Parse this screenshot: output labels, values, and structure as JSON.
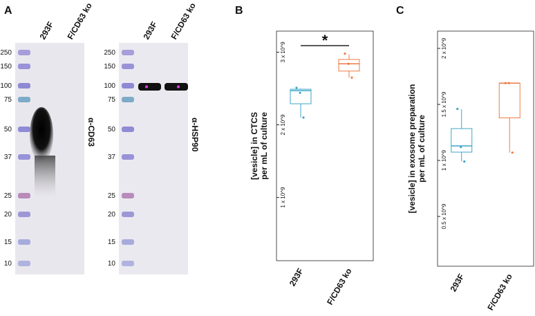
{
  "panel_a": {
    "label": "A",
    "blots": [
      {
        "lanes": [
          "293F",
          "F/CD63 ko"
        ],
        "markers": [
          "250",
          "150",
          "100",
          "75",
          "50",
          "37",
          "25",
          "20",
          "15",
          "10"
        ],
        "antibody": "α-CD63"
      },
      {
        "lanes": [
          "293F",
          "F/CD63 ko"
        ],
        "markers": [
          "250",
          "150",
          "100",
          "75",
          "50",
          "37",
          "25",
          "20",
          "15",
          "10"
        ],
        "antibody": "α-HSP90"
      }
    ]
  },
  "chart_data": [
    {
      "type": "box",
      "panel_label": "B",
      "ylabel": [
        "[vesicle] in CTCS",
        "per mL of culture"
      ],
      "categories": [
        "293F",
        "F/CD63 ko"
      ],
      "series": [
        {
          "name": "293F",
          "color": "#3ea6c7",
          "whisker_low": 2100000000,
          "q1": 2290000000,
          "median": 2470000000,
          "q3": 2490000000,
          "whisker_high": 2500000000,
          "points": [
            2510000000,
            2440000000,
            2100000000
          ]
        },
        {
          "name": "F/CD63 ko",
          "color": "#ee7a45",
          "whisker_low": 2650000000,
          "q1": 2740000000,
          "median": 2840000000,
          "q3": 2900000000,
          "whisker_high": 2970000000,
          "points": [
            2980000000,
            2840000000,
            2650000000
          ]
        }
      ],
      "ylim": [
        130000000,
        3290000000
      ],
      "yticks": [
        {
          "value": 1000000000,
          "label": "1 x 10^9"
        },
        {
          "value": 2000000000,
          "label": "2 x 10^9"
        },
        {
          "value": 3000000000,
          "label": "3 x 10^9"
        }
      ],
      "annotation": "*"
    },
    {
      "type": "box",
      "panel_label": "C",
      "ylabel": [
        "[vesicle] in exosome preparation",
        "per mL of culture"
      ],
      "categories": [
        "293F",
        "F/CD63 ko"
      ],
      "series": [
        {
          "name": "293F",
          "color": "#3ea6c7",
          "whisker_low": 990000000,
          "q1": 1074000000,
          "median": 1130000000,
          "q3": 1284000000,
          "whisker_high": 1457000000,
          "points": [
            1460000000,
            1120000000,
            990000000
          ]
        },
        {
          "name": "F/CD63 ko",
          "color": "#ee7a45",
          "whisker_low": 1070000000,
          "q1": 1380000000,
          "median": 1690000000,
          "q3": 1690000000,
          "whisker_high": 1690000000,
          "points": [
            1690000000,
            1690000000,
            1070000000
          ]
        }
      ],
      "ylim": [
        56000000,
        2154000000
      ],
      "yticks": [
        {
          "value": 500000000,
          "label": "0.5 x 10^9"
        },
        {
          "value": 1000000000,
          "label": "1 x 10^9"
        },
        {
          "value": 1500000000,
          "label": "1.5 x 10^9"
        },
        {
          "value": 2000000000,
          "label": "2 x 10^9"
        }
      ]
    }
  ]
}
